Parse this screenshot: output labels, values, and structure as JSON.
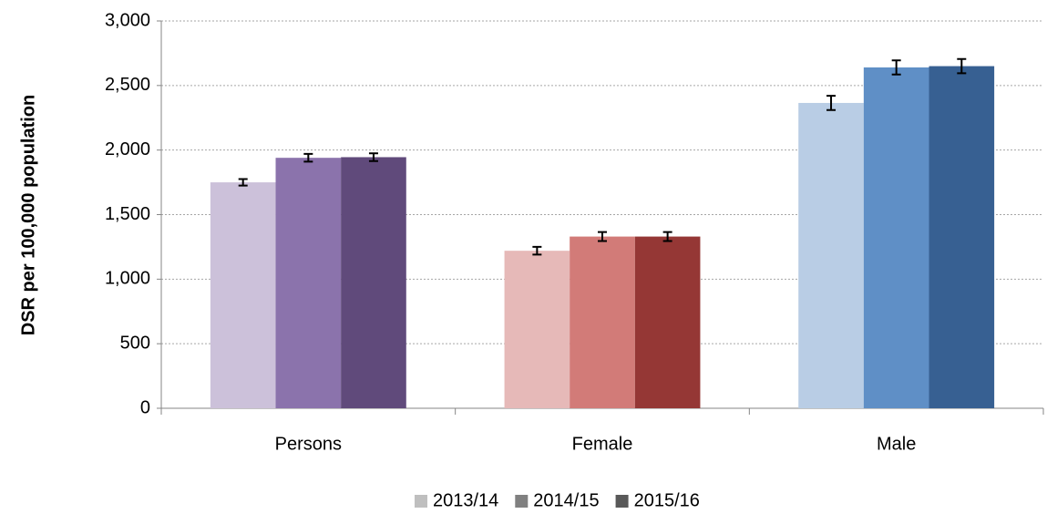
{
  "chart_data": {
    "type": "bar",
    "y_label": "DSR per 100,000 population",
    "categories": [
      "Persons",
      "Female",
      "Male"
    ],
    "series": [
      {
        "name": "2013/14",
        "color": "#bfbfbf",
        "bar_colors": [
          "#ccc1da",
          "#e6b9b8",
          "#b9cde5"
        ],
        "values": [
          1750,
          1220,
          2365
        ],
        "errors": [
          25,
          30,
          55
        ]
      },
      {
        "name": "2014/15",
        "color": "#808080",
        "bar_colors": [
          "#8b73ac",
          "#d27b78",
          "#5f8fc6"
        ],
        "values": [
          1940,
          1330,
          2640
        ],
        "errors": [
          30,
          35,
          55
        ]
      },
      {
        "name": "2015/16",
        "color": "#595959",
        "bar_colors": [
          "#604a7b",
          "#953735",
          "#376092"
        ],
        "values": [
          1945,
          1330,
          2650
        ],
        "errors": [
          30,
          35,
          55
        ]
      }
    ],
    "ylim": [
      0,
      3000
    ],
    "yticks": [
      0,
      500,
      {
        "value": 1000,
        "label": "1,000"
      },
      {
        "value": 1500,
        "label": "1,500"
      },
      {
        "value": 2000,
        "label": "2,000"
      },
      {
        "value": 2500,
        "label": "2,500"
      },
      {
        "value": 3000,
        "label": "3,000"
      }
    ],
    "grid": true,
    "legend": "bottom"
  }
}
